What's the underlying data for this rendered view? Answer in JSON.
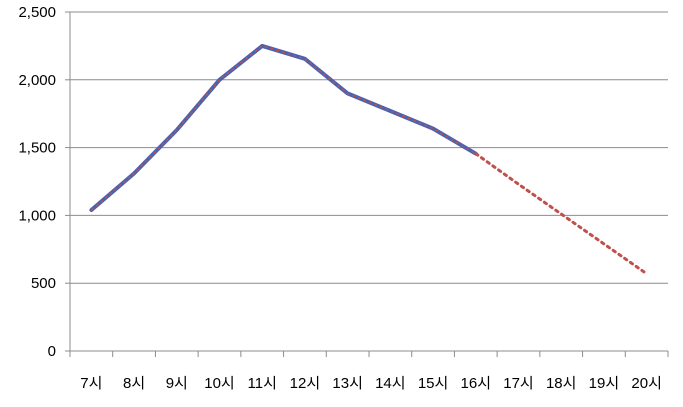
{
  "chart_data": {
    "type": "line",
    "title": "",
    "xlabel": "",
    "ylabel": "",
    "categories": [
      "7시",
      "8시",
      "9시",
      "10시",
      "11시",
      "12시",
      "13시",
      "14시",
      "15시",
      "16시",
      "17시",
      "18시",
      "19시",
      "20시"
    ],
    "y_ticks": [
      "0",
      "500",
      "1,000",
      "1,500",
      "2,000",
      "2,500"
    ],
    "ylim": [
      0,
      2500
    ],
    "grid": true,
    "legend": "none",
    "series": [
      {
        "style": "solid",
        "color": "#4a62b0",
        "overlay_color": "#c0504d",
        "values": [
          1040,
          1310,
          1630,
          2000,
          2250,
          2155,
          1900,
          1770,
          1640,
          1455,
          null,
          null,
          null,
          null
        ]
      },
      {
        "style": "dotted",
        "color": "#c0504d",
        "values": [
          null,
          null,
          null,
          null,
          null,
          null,
          null,
          null,
          null,
          1455,
          1230,
          1010,
          790,
          570
        ]
      }
    ]
  }
}
